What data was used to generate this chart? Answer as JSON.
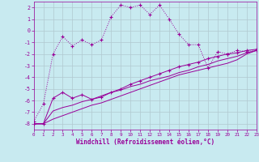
{
  "xlabel": "Windchill (Refroidissement éolien,°C)",
  "background_color": "#c8eaf0",
  "line_color": "#990099",
  "grid_color": "#b0c8d0",
  "x_ticks": [
    0,
    1,
    2,
    3,
    4,
    5,
    6,
    7,
    8,
    9,
    10,
    11,
    12,
    13,
    14,
    15,
    16,
    17,
    18,
    19,
    20,
    21,
    22,
    23
  ],
  "y_ticks": [
    -8,
    -7,
    -6,
    -5,
    -4,
    -3,
    -2,
    -1,
    0,
    1,
    2
  ],
  "xlim": [
    0,
    23
  ],
  "ylim": [
    -8.5,
    2.5
  ],
  "series1_x": [
    0,
    1,
    2,
    3,
    4,
    5,
    6,
    7,
    8,
    9,
    10,
    11,
    12,
    13,
    14,
    15,
    16,
    17,
    18,
    19,
    20,
    21,
    22,
    23
  ],
  "series1_y": [
    -7.8,
    -6.3,
    -2.0,
    -0.5,
    -1.3,
    -0.8,
    -1.2,
    -0.8,
    1.2,
    2.2,
    2.0,
    2.2,
    1.4,
    2.2,
    1.0,
    -0.3,
    -1.2,
    -1.2,
    -3.2,
    -1.8,
    -2.0,
    -1.7,
    -1.8,
    -1.7
  ],
  "series2_x": [
    0,
    1,
    2,
    3,
    4,
    5,
    6,
    7,
    8,
    9,
    10,
    11,
    12,
    13,
    14,
    15,
    16,
    17,
    18,
    19,
    20,
    21,
    22,
    23
  ],
  "series2_y": [
    -8.0,
    -8.0,
    -5.8,
    -5.3,
    -5.8,
    -5.5,
    -5.9,
    -5.7,
    -5.3,
    -5.0,
    -4.6,
    -4.3,
    -4.0,
    -3.7,
    -3.4,
    -3.1,
    -2.9,
    -2.7,
    -2.4,
    -2.2,
    -2.0,
    -1.9,
    -1.7,
    -1.6
  ],
  "series3_x": [
    0,
    1,
    2,
    3,
    4,
    5,
    6,
    7,
    8,
    9,
    10,
    11,
    12,
    13,
    14,
    15,
    16,
    17,
    18,
    19,
    20,
    21,
    22,
    23
  ],
  "series3_y": [
    -8.0,
    -8.0,
    -7.6,
    -7.3,
    -7.0,
    -6.7,
    -6.4,
    -6.2,
    -5.9,
    -5.6,
    -5.3,
    -5.0,
    -4.7,
    -4.4,
    -4.1,
    -3.8,
    -3.6,
    -3.4,
    -3.2,
    -3.0,
    -2.8,
    -2.5,
    -2.0,
    -1.7
  ],
  "series4_x": [
    0,
    1,
    2,
    3,
    4,
    5,
    6,
    7,
    8,
    9,
    10,
    11,
    12,
    13,
    14,
    15,
    16,
    17,
    18,
    19,
    20,
    21,
    22,
    23
  ],
  "series4_y": [
    -8.0,
    -8.0,
    -6.9,
    -6.6,
    -6.4,
    -6.1,
    -5.9,
    -5.6,
    -5.3,
    -5.1,
    -4.8,
    -4.6,
    -4.3,
    -4.1,
    -3.9,
    -3.6,
    -3.4,
    -3.1,
    -2.9,
    -2.6,
    -2.4,
    -2.2,
    -1.9,
    -1.7
  ]
}
